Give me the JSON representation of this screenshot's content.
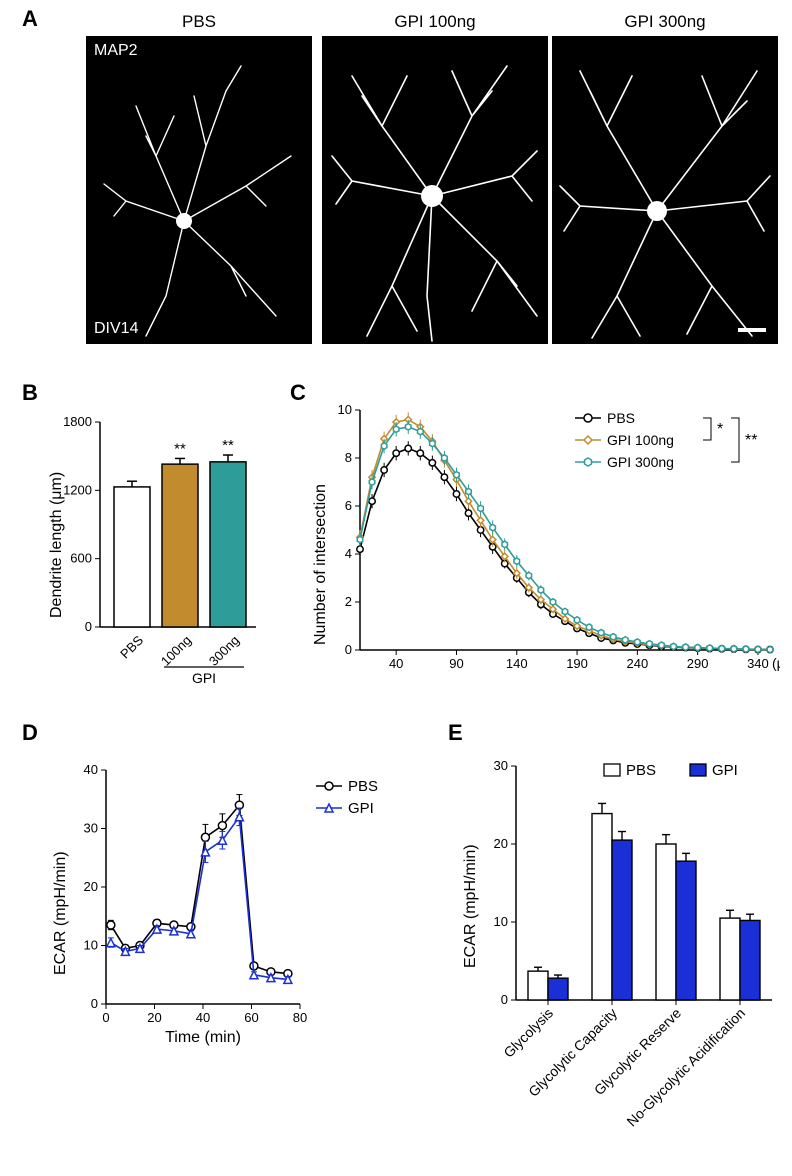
{
  "panelA": {
    "label": "A",
    "conditions": [
      "PBS",
      "GPI 100ng",
      "GPI 300ng"
    ],
    "topLeft": "MAP2",
    "bottomLeft": "DIV14"
  },
  "panelB": {
    "label": "B",
    "ylabel": "Dendrite length (μm)",
    "yticks": [
      0,
      600,
      1200,
      1800
    ],
    "groups": [
      "PBS",
      "100ng",
      "300ng"
    ],
    "values": [
      1230,
      1430,
      1450
    ],
    "errs": [
      50,
      50,
      60
    ],
    "colors": [
      "#ffffff",
      "#c28c2e",
      "#2e9d9a"
    ],
    "sig": [
      "",
      "**",
      "**"
    ],
    "bracket_label": "GPI"
  },
  "panelC": {
    "label": "C",
    "ylabel": "Number of intersection",
    "xlabel_unit": "(μm)",
    "yticks": [
      0,
      2,
      4,
      6,
      8,
      10
    ],
    "xticks": [
      40,
      90,
      140,
      190,
      240,
      290,
      340
    ],
    "series": [
      {
        "name": "PBS",
        "color": "#000000",
        "marker": "circle",
        "x": [
          10,
          20,
          30,
          40,
          50,
          60,
          70,
          80,
          90,
          100,
          110,
          120,
          130,
          140,
          150,
          160,
          170,
          180,
          190,
          200,
          210,
          220,
          230,
          240,
          250,
          260,
          270,
          280,
          290,
          300,
          310,
          320,
          330,
          340,
          350
        ],
        "y": [
          4.2,
          6.2,
          7.5,
          8.2,
          8.4,
          8.2,
          7.8,
          7.2,
          6.5,
          5.7,
          5.0,
          4.3,
          3.6,
          3.0,
          2.4,
          1.9,
          1.5,
          1.2,
          0.9,
          0.7,
          0.5,
          0.4,
          0.3,
          0.25,
          0.2,
          0.15,
          0.12,
          0.1,
          0.08,
          0.06,
          0.05,
          0.04,
          0.03,
          0.02,
          0.02
        ],
        "err": [
          0.3,
          0.3,
          0.3,
          0.3,
          0.3,
          0.3,
          0.3,
          0.3,
          0.3,
          0.3,
          0.3,
          0.3,
          0.2,
          0.2,
          0.2,
          0.2,
          0.15,
          0.15,
          0.1,
          0.1,
          0.1,
          0.1,
          0.08,
          0.08,
          0.05,
          0.05,
          0.05,
          0.05,
          0.04,
          0.04,
          0.03,
          0.03,
          0.02,
          0.02,
          0.02
        ]
      },
      {
        "name": "GPI 100ng",
        "color": "#c28c2e",
        "marker": "diamond",
        "x": [
          10,
          20,
          30,
          40,
          50,
          60,
          70,
          80,
          90,
          100,
          110,
          120,
          130,
          140,
          150,
          160,
          170,
          180,
          190,
          200,
          210,
          220,
          230,
          240,
          250,
          260,
          270,
          280,
          290,
          300,
          310,
          320,
          330,
          340,
          350
        ],
        "y": [
          4.7,
          7.2,
          8.8,
          9.5,
          9.6,
          9.3,
          8.7,
          7.9,
          7.1,
          6.2,
          5.4,
          4.6,
          3.9,
          3.2,
          2.6,
          2.1,
          1.7,
          1.3,
          1.0,
          0.8,
          0.6,
          0.45,
          0.35,
          0.28,
          0.22,
          0.17,
          0.13,
          0.11,
          0.09,
          0.07,
          0.05,
          0.04,
          0.03,
          0.02,
          0.02
        ],
        "err": [
          0.3,
          0.3,
          0.3,
          0.3,
          0.3,
          0.3,
          0.3,
          0.3,
          0.3,
          0.3,
          0.3,
          0.3,
          0.25,
          0.25,
          0.2,
          0.2,
          0.15,
          0.15,
          0.1,
          0.1,
          0.1,
          0.1,
          0.08,
          0.08,
          0.05,
          0.05,
          0.05,
          0.05,
          0.04,
          0.04,
          0.03,
          0.03,
          0.02,
          0.02,
          0.02
        ]
      },
      {
        "name": "GPI 300ng",
        "color": "#2e9d9a",
        "marker": "hexagon",
        "x": [
          10,
          20,
          30,
          40,
          50,
          60,
          70,
          80,
          90,
          100,
          110,
          120,
          130,
          140,
          150,
          160,
          170,
          180,
          190,
          200,
          210,
          220,
          230,
          240,
          250,
          260,
          270,
          280,
          290,
          300,
          310,
          320,
          330,
          340,
          350
        ],
        "y": [
          4.6,
          7.0,
          8.5,
          9.2,
          9.3,
          9.1,
          8.6,
          8.0,
          7.3,
          6.6,
          5.9,
          5.1,
          4.4,
          3.7,
          3.1,
          2.5,
          2.0,
          1.6,
          1.25,
          0.95,
          0.72,
          0.55,
          0.42,
          0.33,
          0.26,
          0.2,
          0.15,
          0.12,
          0.1,
          0.08,
          0.06,
          0.05,
          0.04,
          0.03,
          0.02
        ],
        "err": [
          0.3,
          0.3,
          0.3,
          0.3,
          0.3,
          0.3,
          0.3,
          0.3,
          0.3,
          0.3,
          0.3,
          0.3,
          0.25,
          0.25,
          0.2,
          0.2,
          0.15,
          0.15,
          0.12,
          0.1,
          0.1,
          0.1,
          0.08,
          0.08,
          0.05,
          0.05,
          0.05,
          0.05,
          0.04,
          0.04,
          0.03,
          0.03,
          0.02,
          0.02,
          0.02
        ]
      }
    ],
    "sig_brackets": [
      {
        "pair": "PBS-100",
        "label": "*"
      },
      {
        "pair": "PBS-300",
        "label": "**"
      }
    ]
  },
  "panelD": {
    "label": "D",
    "ylabel": "ECAR (mpH/min)",
    "xlabel": "Time (min)",
    "yticks": [
      0,
      10,
      20,
      30,
      40
    ],
    "xticks": [
      0,
      20,
      40,
      60,
      80
    ],
    "series": [
      {
        "name": "PBS",
        "color": "#000000",
        "marker": "circle",
        "x": [
          2,
          8,
          14,
          21,
          28,
          35,
          41,
          48,
          55,
          61,
          68,
          75
        ],
        "y": [
          13.5,
          9.5,
          10,
          13.8,
          13.5,
          13.2,
          28.5,
          30.5,
          34,
          6.5,
          5.5,
          5.2
        ],
        "err": [
          0.8,
          0.5,
          0.5,
          0.6,
          0.5,
          0.5,
          2.2,
          2.0,
          1.8,
          0.6,
          0.5,
          0.5
        ]
      },
      {
        "name": "GPI",
        "color": "#1a2fd6",
        "marker": "triangle",
        "x": [
          2,
          8,
          14,
          21,
          28,
          35,
          41,
          48,
          55,
          61,
          68,
          75
        ],
        "y": [
          10.5,
          9,
          9.5,
          12.8,
          12.5,
          12,
          26,
          28,
          32,
          5,
          4.5,
          4.2
        ],
        "err": [
          0.8,
          0.5,
          0.5,
          0.6,
          0.5,
          0.5,
          1.8,
          1.5,
          1.5,
          0.5,
          0.5,
          0.5
        ]
      }
    ]
  },
  "panelE": {
    "label": "E",
    "ylabel": "ECAR (mpH/min)",
    "yticks": [
      0,
      10,
      20,
      30
    ],
    "groups": [
      "Glycolysis",
      "Glycolytic Capacity",
      "Glycolytic Reserve",
      "No-Glycolytic Acidification"
    ],
    "series": [
      {
        "name": "PBS",
        "color": "#ffffff",
        "values": [
          3.7,
          23.9,
          20,
          10.5
        ],
        "errs": [
          0.5,
          1.3,
          1.2,
          1.0
        ]
      },
      {
        "name": "GPI",
        "color": "#1a2fd6",
        "values": [
          2.8,
          20.5,
          17.8,
          10.2
        ],
        "errs": [
          0.4,
          1.1,
          1.0,
          0.8
        ]
      }
    ]
  }
}
